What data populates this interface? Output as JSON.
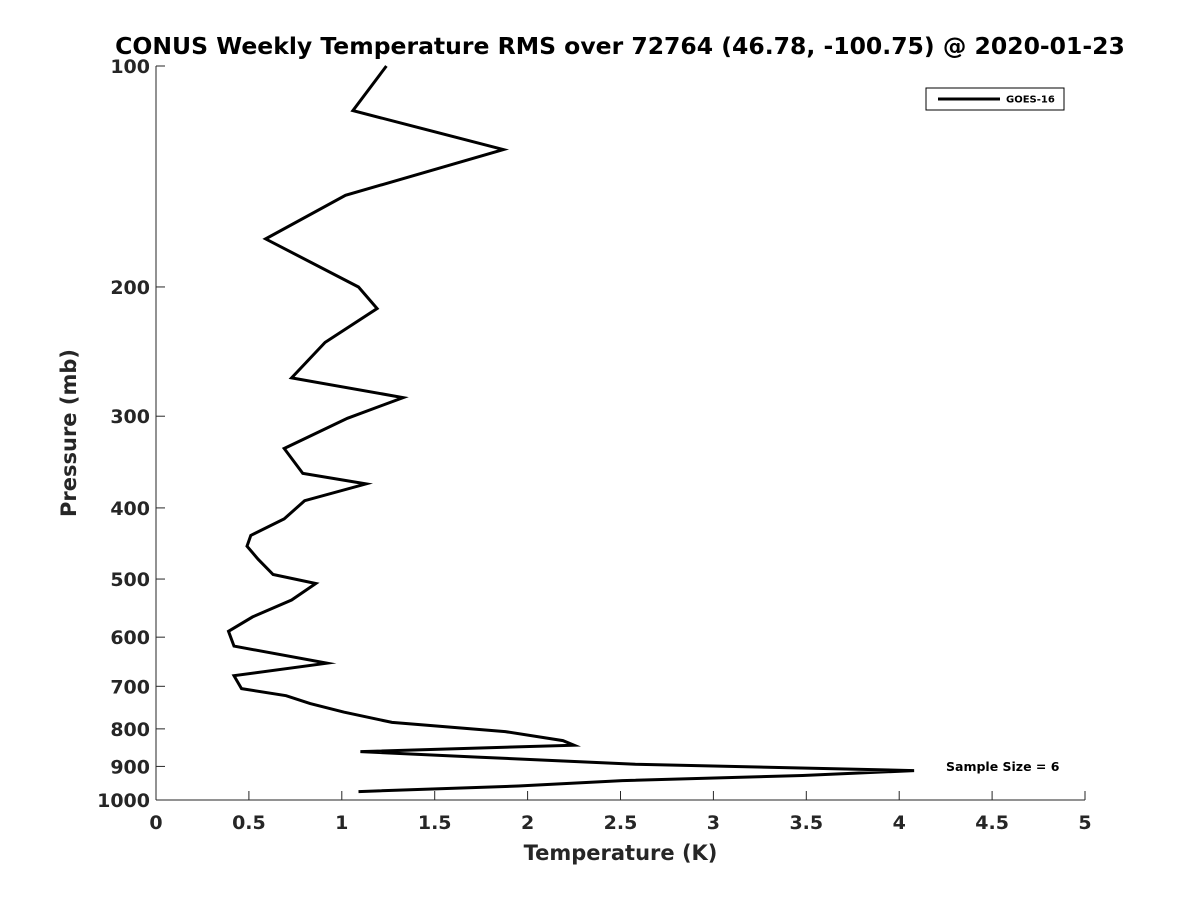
{
  "chart_data": {
    "type": "line",
    "title": "CONUS Weekly Temperature RMS over 72764 (46.78, -100.75) @ 2020-01-23",
    "xlabel": "Temperature (K)",
    "ylabel": "Pressure (mb)",
    "xlim": [
      0,
      5
    ],
    "ylim": [
      100,
      1000
    ],
    "yscale": "log",
    "y_reversed": true,
    "grid": false,
    "legend_position": "top-right",
    "xticks": [
      0,
      0.5,
      1,
      1.5,
      2,
      2.5,
      3,
      3.5,
      4,
      4.5,
      5
    ],
    "xtick_labels": [
      "0",
      "0.5",
      "1",
      "1.5",
      "2",
      "2.5",
      "3",
      "3.5",
      "4",
      "4.5",
      "5"
    ],
    "yticks": [
      100,
      200,
      300,
      400,
      500,
      600,
      700,
      800,
      900,
      1000
    ],
    "ytick_labels": [
      "100",
      "200",
      "300",
      "400",
      "500",
      "600",
      "700",
      "800",
      "900",
      "1000"
    ],
    "series": [
      {
        "name": "GOES-16",
        "color": "#000000",
        "x": [
          1.24,
          1.06,
          1.87,
          1.02,
          0.59,
          1.09,
          1.19,
          0.91,
          0.73,
          1.33,
          1.03,
          0.69,
          0.79,
          1.13,
          0.8,
          0.69,
          0.51,
          0.49,
          0.55,
          0.63,
          0.86,
          0.73,
          0.52,
          0.39,
          0.42,
          0.92,
          0.42,
          0.46,
          0.7,
          0.83,
          1.01,
          1.27,
          1.88,
          2.19,
          2.25,
          1.1,
          1.73,
          2.58,
          4.08,
          3.48,
          2.51,
          1.95,
          1.09
        ],
        "y": [
          100,
          115,
          130,
          150,
          172,
          200,
          214,
          238,
          266,
          283,
          302,
          332,
          359,
          371,
          391,
          414,
          436,
          451,
          470,
          493,
          507,
          534,
          563,
          589,
          617,
          651,
          677,
          705,
          721,
          739,
          759,
          784,
          807,
          830,
          842,
          859,
          874,
          894,
          912,
          926,
          941,
          957,
          974
        ]
      }
    ],
    "annotations": [
      {
        "text": "Sample Size = 6"
      }
    ]
  }
}
